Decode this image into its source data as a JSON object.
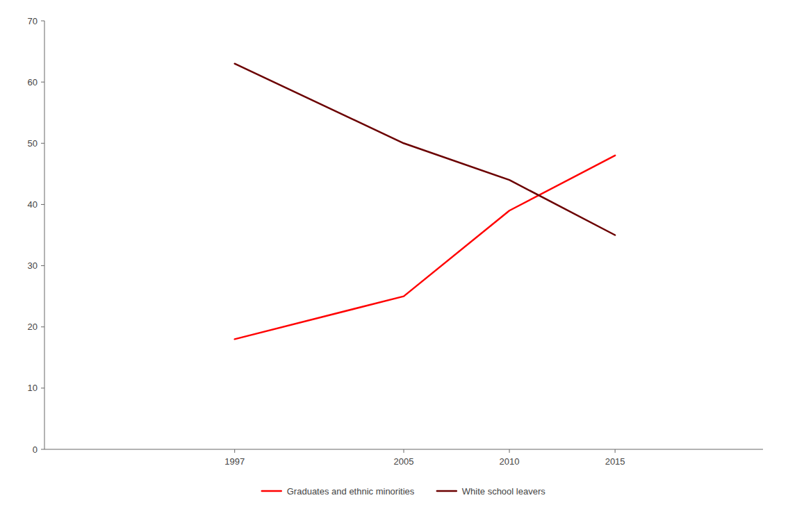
{
  "chart_data": {
    "type": "line",
    "x": [
      1997,
      2005,
      2010,
      2015
    ],
    "xlim": [
      1988,
      2022
    ],
    "xticks": [
      1997,
      2005,
      2010,
      2015
    ],
    "ylim": [
      0,
      70
    ],
    "yticks": [
      0,
      10,
      20,
      30,
      40,
      50,
      60,
      70
    ],
    "series": [
      {
        "name": "Graduates and ethnic minorities",
        "color": "#ff0000",
        "values": [
          18,
          25,
          39,
          48
        ]
      },
      {
        "name": "White school leavers",
        "color": "#6b0000",
        "values": [
          63,
          50,
          44,
          35
        ]
      }
    ],
    "grid": false,
    "legend": "bottom"
  }
}
